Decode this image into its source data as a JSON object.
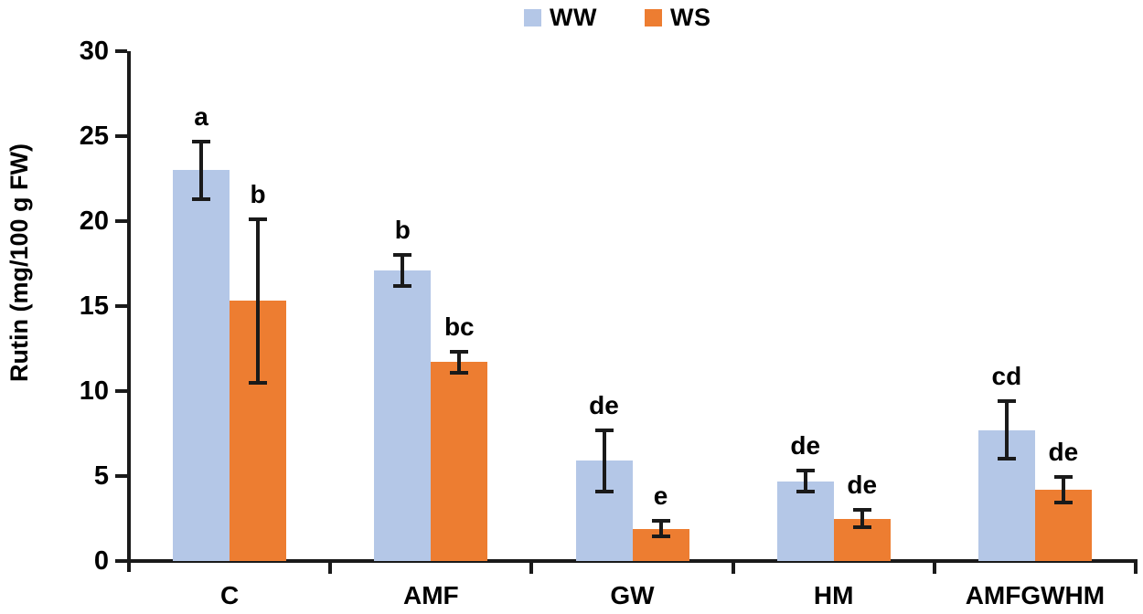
{
  "legend": {
    "items": [
      {
        "label": "WW",
        "color": "#b4c7e7"
      },
      {
        "label": "WS",
        "color": "#ed7d31"
      }
    ]
  },
  "chart_data": {
    "type": "bar",
    "title": "",
    "xlabel": "",
    "ylabel": "Rutin (mg/100 g FW)",
    "ylim": [
      0,
      30
    ],
    "yticks": [
      0,
      5,
      10,
      15,
      20,
      25,
      30
    ],
    "grid": false,
    "legend_position": "top-center",
    "categories": [
      "C",
      "AMF",
      "GW",
      "HM",
      "AMFGWHM"
    ],
    "series": [
      {
        "name": "WW",
        "color": "#b4c7e7",
        "values": [
          23.0,
          17.1,
          5.9,
          4.7,
          7.7
        ],
        "errors": [
          1.7,
          0.9,
          1.8,
          0.6,
          1.7
        ],
        "sig_letters": [
          "a",
          "b",
          "de",
          "de",
          "cd"
        ]
      },
      {
        "name": "WS",
        "color": "#ed7d31",
        "values": [
          15.3,
          11.7,
          1.9,
          2.5,
          4.2
        ],
        "errors": [
          4.8,
          0.6,
          0.45,
          0.5,
          0.75
        ],
        "sig_letters": [
          "b",
          "bc",
          "e",
          "de",
          "de"
        ]
      }
    ]
  }
}
